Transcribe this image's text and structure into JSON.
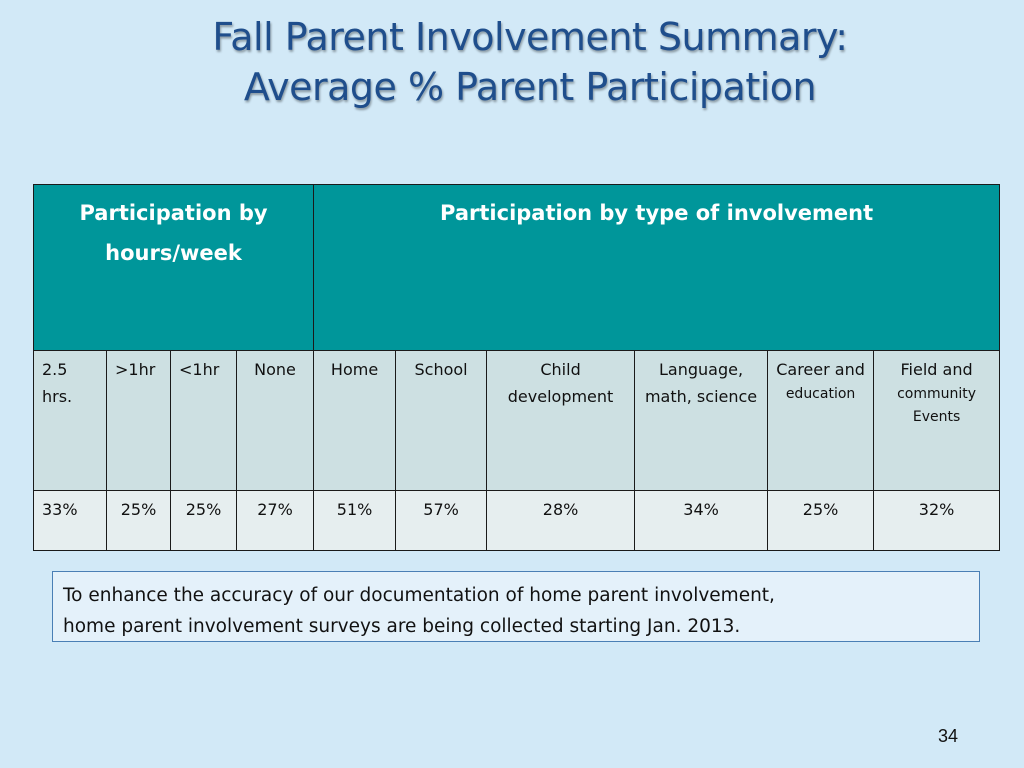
{
  "title": {
    "line1": "Fall Parent Involvement Summary:",
    "line2": "Average % Parent Participation"
  },
  "table": {
    "group_headers": {
      "hours": "Participation by hours/week",
      "type": "Participation by type of involvement"
    },
    "columns": [
      {
        "label": "2.5 hrs.",
        "value": "33%"
      },
      {
        "label": ">1hr",
        "value": "25%"
      },
      {
        "label": "<1hr",
        "value": "25%"
      },
      {
        "label": "None",
        "value": "27%"
      },
      {
        "label": "Home",
        "value": "51%"
      },
      {
        "label": "School",
        "value": "57%"
      },
      {
        "label": "Child development",
        "value": "28%"
      },
      {
        "label": "Language, math, science",
        "value": "34%"
      },
      {
        "label_line1": "Career and",
        "label_line2": "education",
        "value": "25%"
      },
      {
        "label_line1": "Field and",
        "label_line2": "community Events",
        "value": "32%"
      }
    ]
  },
  "note": {
    "line1": "To enhance the accuracy of our documentation of home parent involvement,",
    "line2": "home parent involvement surveys are being collected starting Jan. 2013."
  },
  "page_number": "34",
  "colors": {
    "background": "#d2e9f7",
    "title": "#1f4e8c",
    "header_fill": "#00969a",
    "subheader_fill": "#cde0e2",
    "value_fill": "#e6eeef",
    "note_border": "#4a7fb5"
  }
}
